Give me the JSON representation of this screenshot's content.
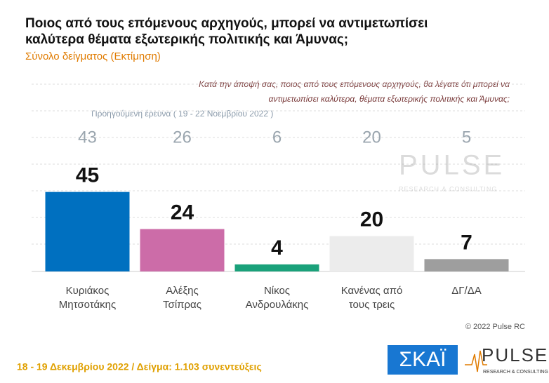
{
  "chart_data": {
    "type": "bar",
    "title": [
      "Ποιος από τους επόμενους αρχηγούς, μπορεί να αντιμετωπίσει",
      "καλύτερα θέματα εξωτερικής πολιτικής και Άμυνας;"
    ],
    "subtitle": "Σύνολο δείγματος  (Εκτίμηση)",
    "question": [
      "Κατά την άποψή σας, ποιος  από τους επόμενους αρχηγούς, θα λέγατε ότι μπορεί να",
      "αντιμετωπίσει καλύτερα, θέματα εξωτερικής πολιτικής και Άμυνας;"
    ],
    "categories": [
      [
        "Κυριάκος",
        "Μητσοτάκης"
      ],
      [
        "Αλέξης",
        "Τσίπρας"
      ],
      [
        "Νίκος",
        "Ανδρουλάκης"
      ],
      [
        "Κανένας από",
        "τους τρεις"
      ],
      [
        "ΔΓ/ΔΑ"
      ]
    ],
    "values": [
      45,
      24,
      4,
      20,
      7
    ],
    "colors": [
      "#0070c0",
      "#cc6ca8",
      "#1aa17a",
      "#ececec",
      "#9e9e9e"
    ],
    "previous": {
      "label": "Προηγούμενη έρευνα  ( 19 - 22 Νοεμβρίου  2022 )",
      "values": [
        43,
        26,
        6,
        20,
        5
      ]
    },
    "ylim": [
      0,
      106
    ]
  },
  "copyright": "© 2022 Pulse RC",
  "footer": "18 - 19  Δεκεμβρίου  2022  /  Δείγμα:  1.103 συνεντεύξεις",
  "logos": {
    "skai": "ΣΚΑΪ",
    "pulse": "PULSE",
    "pulse_sub": "RESEARCH & CONSULTING"
  }
}
